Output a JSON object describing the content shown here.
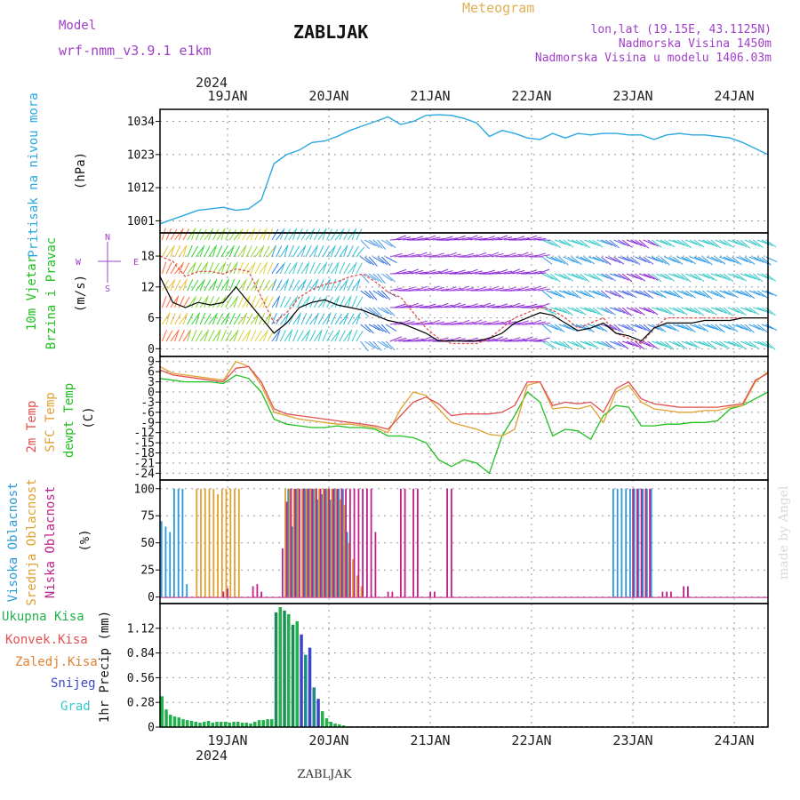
{
  "header": {
    "model_label": "Model",
    "model_name": "wrf-nmm_v3.9.1 e1km",
    "station": "ZABLJAK",
    "meteogram": "Meteogram",
    "lonlat": "lon,lat (19.15E, 43.1125N)",
    "altitude": "Nadmorska Visina 1450m",
    "model_altitude": "Nadmorska Visina u modelu 1406.03m",
    "watermark": "made by Angel",
    "bottom_title": "ZABLJAK"
  },
  "time_axis": {
    "year": "2024",
    "days": [
      "19JAN",
      "20JAN",
      "21JAN",
      "22JAN",
      "23JAN",
      "24JAN"
    ],
    "start_hour": 0,
    "end_hour": 144
  },
  "colors": {
    "pressure": "#2aa7e0",
    "wind_speed": "#000000",
    "gust": "#e05050",
    "temp2m": "#e05050",
    "sfc_temp": "#e0a030",
    "dewpoint": "#20c020",
    "cloud_high": "#2a9ad6",
    "cloud_mid": "#e0a030",
    "cloud_low": "#c0208a",
    "precip_total": "#22b24c",
    "precip_conv": "#e05050",
    "precip_snow": "#3c46c8",
    "precip_graup": "#38c8c8",
    "purple_text": "#a040c8",
    "title_orange": "#e0b050"
  },
  "chart_data": [
    {
      "type": "line",
      "name": "pressure",
      "ylabel": [
        "Pritisak na nivou mora",
        "(hPa)"
      ],
      "yticks": [
        1001,
        1012,
        1023,
        1034
      ],
      "ylim": [
        997,
        1038
      ],
      "x": [
        0,
        3,
        6,
        9,
        12,
        15,
        18,
        21,
        24,
        27,
        30,
        33,
        36,
        39,
        42,
        45,
        48,
        51,
        54,
        57,
        60,
        63,
        66,
        69,
        72,
        75,
        78,
        81,
        84,
        87,
        90,
        93,
        96,
        99,
        102,
        105,
        108,
        111,
        114,
        117,
        120,
        123,
        126,
        129,
        132,
        135,
        138,
        141,
        144
      ],
      "values": [
        1000,
        1001.5,
        1003,
        1004.5,
        1005,
        1005.5,
        1004.5,
        1005,
        1008,
        1020,
        1023,
        1024.5,
        1027,
        1027.5,
        1029,
        1031,
        1032.5,
        1034,
        1035.5,
        1033,
        1034,
        1036,
        1036.2,
        1036,
        1035,
        1033.5,
        1029,
        1031,
        1030,
        1028.5,
        1028,
        1030,
        1028.5,
        1030,
        1029.5,
        1030,
        1030,
        1029.5,
        1029.5,
        1028,
        1029.5,
        1030,
        1029.5,
        1029.5,
        1029,
        1028.5,
        1027,
        1025,
        1023
      ]
    },
    {
      "type": "line",
      "name": "wind",
      "ylabel": [
        "10m Vjetar",
        "Brzina i Pravac",
        "(m/s)"
      ],
      "compass": [
        "N",
        "E",
        "S",
        "W"
      ],
      "yticks": [
        0,
        6,
        12,
        18
      ],
      "ylim": [
        -1.5,
        22.5
      ],
      "x": [
        0,
        3,
        6,
        9,
        12,
        15,
        18,
        21,
        24,
        27,
        30,
        33,
        36,
        39,
        42,
        45,
        48,
        51,
        54,
        57,
        60,
        63,
        66,
        69,
        72,
        75,
        78,
        81,
        84,
        87,
        90,
        93,
        96,
        99,
        102,
        105,
        108,
        111,
        114,
        117,
        120,
        123,
        126,
        129,
        132,
        135,
        138,
        141,
        144
      ],
      "series": [
        {
          "name": "speed",
          "values": [
            14,
            9,
            8,
            9,
            8.5,
            9,
            12,
            9,
            6,
            3,
            5,
            8,
            9,
            9.5,
            8.5,
            8,
            7.5,
            6.5,
            5.5,
            5,
            4,
            3,
            1.5,
            1.5,
            1.5,
            1.5,
            2,
            3,
            5,
            6,
            7,
            6.5,
            5,
            3.5,
            4,
            5,
            3,
            2.5,
            1.5,
            4,
            5,
            5,
            5,
            5.5,
            5.5,
            5.5,
            6,
            6,
            6
          ]
        },
        {
          "name": "gust",
          "values": [
            18,
            17,
            14,
            15,
            15,
            14.5,
            15.5,
            15,
            10,
            5,
            7,
            10,
            11.5,
            12.5,
            13,
            14,
            14.5,
            13,
            11,
            10,
            7,
            4,
            2,
            1,
            1,
            1,
            2,
            4,
            6,
            7,
            8,
            7.5,
            6,
            4,
            5,
            6,
            3,
            2,
            1,
            4,
            6,
            6,
            6,
            6,
            6,
            6,
            6,
            6,
            6
          ]
        }
      ]
    },
    {
      "type": "line",
      "name": "temperature",
      "ylabel": [
        "2m Temp",
        "SFC Temp",
        "dewpt Temp",
        "(C)"
      ],
      "yticks": [
        9,
        6,
        3,
        0,
        -3,
        -6,
        -9,
        -12,
        -15,
        -18,
        -21,
        -24
      ],
      "ylim": [
        -26,
        10.5
      ],
      "x": [
        0,
        3,
        6,
        9,
        12,
        15,
        18,
        21,
        24,
        27,
        30,
        33,
        36,
        39,
        42,
        45,
        48,
        51,
        54,
        57,
        60,
        63,
        66,
        69,
        72,
        75,
        78,
        81,
        84,
        87,
        90,
        93,
        96,
        99,
        102,
        105,
        108,
        111,
        114,
        117,
        120,
        123,
        126,
        129,
        132,
        135,
        138,
        141,
        144
      ],
      "series": [
        {
          "name": "2m Temp",
          "values": [
            6.5,
            5,
            4.5,
            4,
            3.5,
            3,
            7,
            7.5,
            3,
            -5,
            -6.5,
            -7,
            -7.5,
            -8,
            -8.5,
            -9,
            -9.5,
            -10,
            -11,
            -7,
            -3,
            -1.5,
            -3.5,
            -7,
            -6.5,
            -6.5,
            -6.5,
            -6,
            -4,
            3,
            3,
            -4,
            -3,
            -3.5,
            -3,
            -6,
            1,
            3,
            -2,
            -3.5,
            -4,
            -4.5,
            -4.5,
            -4.5,
            -4.5,
            -4,
            -3.5,
            3.5,
            5.5
          ]
        },
        {
          "name": "SFC Temp",
          "values": [
            7.5,
            5.5,
            5,
            4.5,
            4,
            3.5,
            9,
            7.5,
            2,
            -6,
            -7,
            -8,
            -8.5,
            -9,
            -9.5,
            -9.5,
            -10,
            -10.5,
            -12,
            -5,
            0,
            -1,
            -5,
            -9,
            -10,
            -11,
            -12.5,
            -13,
            -11,
            2,
            3,
            -5,
            -4.5,
            -5,
            -4,
            -9,
            0,
            2,
            -3,
            -5,
            -5.5,
            -6,
            -6,
            -5.5,
            -5.5,
            -4.5,
            -4,
            3,
            6
          ]
        },
        {
          "name": "dewpt Temp",
          "values": [
            4,
            3.5,
            3,
            3,
            3,
            2.5,
            5,
            4,
            0,
            -8,
            -9.5,
            -10,
            -10.5,
            -10.5,
            -10,
            -10.5,
            -10.5,
            -11,
            -13,
            -13,
            -13.5,
            -15,
            -20,
            -22,
            -20,
            -21,
            -24,
            -13,
            -7,
            0,
            -3,
            -13,
            -11,
            -11.5,
            -14,
            -7,
            -4,
            -4.5,
            -10,
            -10,
            -9.5,
            -9.5,
            -9,
            -9,
            -8.5,
            -5,
            -4,
            -2,
            0
          ]
        }
      ]
    },
    {
      "type": "bar",
      "name": "cloud",
      "ylabel": [
        "Visoka Oblacnost",
        "Srednja Oblacnost",
        "Niska Oblacnost",
        "(%)"
      ],
      "yticks": [
        0,
        25,
        50,
        75,
        100
      ],
      "ylim": [
        -6,
        108
      ],
      "series": [
        {
          "name": "high",
          "x": [
            0,
            1,
            2,
            3,
            4,
            5,
            6,
            30,
            31,
            32,
            34,
            35,
            36,
            37,
            38,
            39,
            40,
            41,
            42,
            43,
            44,
            107,
            108,
            109,
            110,
            111,
            112,
            113,
            114,
            115,
            116
          ],
          "values": [
            70,
            65,
            60,
            100,
            100,
            100,
            12,
            100,
            65,
            100,
            100,
            100,
            100,
            90,
            95,
            100,
            90,
            100,
            100,
            100,
            60,
            100,
            100,
            100,
            100,
            100,
            100,
            100,
            100,
            100,
            100
          ]
        },
        {
          "name": "mid",
          "x": [
            8,
            9,
            10,
            11,
            12,
            13,
            14,
            15,
            16,
            17,
            18,
            29,
            30,
            31,
            32,
            33,
            34,
            35,
            36,
            37,
            38,
            39,
            40,
            41,
            42,
            43,
            44,
            45,
            46,
            47
          ],
          "values": [
            100,
            100,
            100,
            100,
            100,
            95,
            100,
            100,
            100,
            100,
            100,
            100,
            100,
            100,
            100,
            100,
            100,
            100,
            100,
            100,
            100,
            100,
            100,
            100,
            90,
            85,
            50,
            35,
            20,
            10
          ]
        },
        {
          "name": "low",
          "x": [
            14,
            15,
            21,
            22,
            23,
            28,
            29,
            30,
            31,
            32,
            33,
            34,
            35,
            36,
            37,
            38,
            39,
            40,
            41,
            42,
            43,
            44,
            45,
            46,
            47,
            48,
            49,
            50,
            53,
            54,
            56,
            57,
            59,
            60,
            63,
            64,
            67,
            68,
            111,
            112,
            113,
            114,
            115,
            118,
            119,
            120,
            123,
            124
          ],
          "values": [
            5,
            8,
            10,
            12,
            5,
            45,
            88,
            100,
            100,
            100,
            100,
            100,
            100,
            100,
            100,
            100,
            100,
            100,
            100,
            100,
            100,
            100,
            100,
            100,
            100,
            100,
            100,
            60,
            5,
            5,
            100,
            100,
            100,
            100,
            5,
            5,
            100,
            100,
            100,
            100,
            100,
            100,
            100,
            5,
            5,
            5,
            10,
            10
          ]
        }
      ]
    },
    {
      "type": "bar",
      "name": "precip",
      "ylabel": [
        "1hr Precip (mm)"
      ],
      "legend": [
        "Ukupna Kisa",
        "Konvek.Kisa",
        "Zaledj.Kisa",
        "Snijeg",
        "Grad"
      ],
      "yticks": [
        0,
        0.28,
        0.56,
        0.84,
        1.12
      ],
      "ylim": [
        0,
        1.4
      ],
      "series": [
        {
          "name": "Ukupna Kisa",
          "x": [
            0,
            1,
            2,
            3,
            4,
            5,
            6,
            7,
            8,
            9,
            10,
            11,
            12,
            13,
            14,
            15,
            16,
            17,
            18,
            19,
            20,
            21,
            22,
            23,
            24,
            25,
            26,
            27,
            28,
            29,
            30,
            31,
            32,
            33,
            34,
            35,
            36,
            37,
            38,
            39,
            40,
            41,
            42,
            43,
            44
          ],
          "values": [
            0.35,
            0.2,
            0.14,
            0.12,
            0.11,
            0.09,
            0.08,
            0.07,
            0.06,
            0.05,
            0.06,
            0.07,
            0.05,
            0.06,
            0.06,
            0.06,
            0.05,
            0.06,
            0.06,
            0.05,
            0.05,
            0.04,
            0.06,
            0.08,
            0.08,
            0.09,
            0.09,
            1.3,
            1.36,
            1.32,
            1.28,
            1.16,
            1.2,
            1.05,
            0.82,
            0.9,
            0.45,
            0.32,
            0.18,
            0.1,
            0.06,
            0.04,
            0.03,
            0.02,
            0.01
          ]
        }
      ]
    }
  ]
}
